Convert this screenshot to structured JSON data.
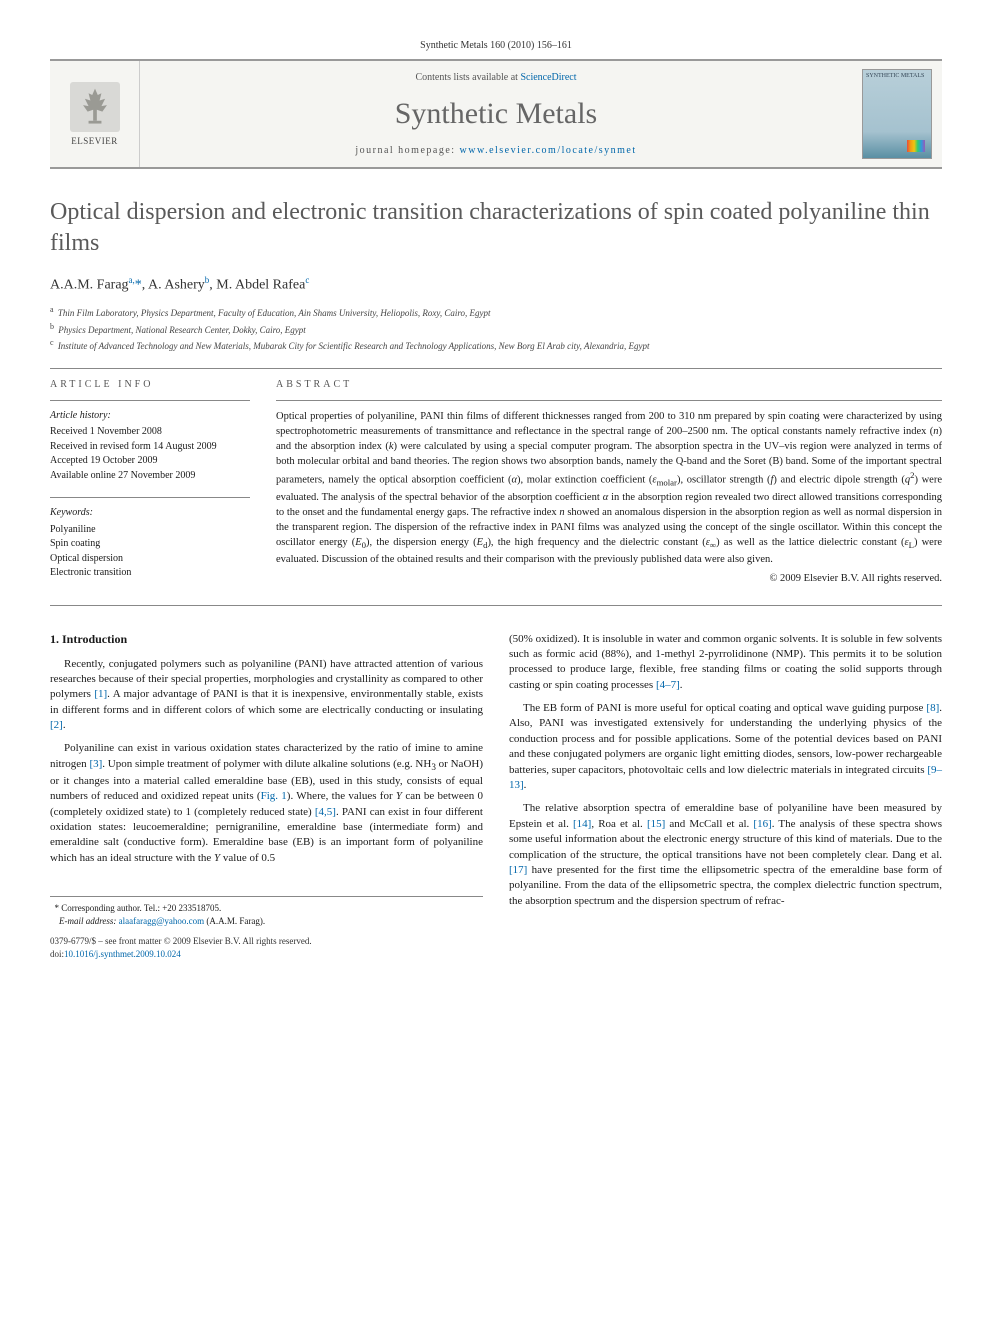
{
  "header": {
    "citation": "Synthetic Metals 160 (2010) 156–161"
  },
  "banner": {
    "publisher": "ELSEVIER",
    "contents_prefix": "Contents lists available at ",
    "contents_link": "ScienceDirect",
    "journal_title": "Synthetic Metals",
    "homepage_prefix": "journal homepage: ",
    "homepage_url": "www.elsevier.com/locate/synmet",
    "cover_label": "SYNTHETIC METALS"
  },
  "article": {
    "title": "Optical dispersion and electronic transition characterizations of spin coated polyaniline thin films",
    "authors_html": "A.A.M. Farag<sup>a,</sup><span class=\"star\">*</span>, A. Ashery<sup>b</sup>, M. Abdel Rafea<sup>c</sup>",
    "affiliations": {
      "a": "Thin Film Laboratory, Physics Department, Faculty of Education, Ain Shams University, Heliopolis, Roxy, Cairo, Egypt",
      "b": "Physics Department, National Research Center, Dokky, Cairo, Egypt",
      "c": "Institute of Advanced Technology and New Materials, Mubarak City for Scientific Research and Technology Applications, New Borg El Arab city, Alexandria, Egypt"
    }
  },
  "info": {
    "section_label": "article info",
    "history_title": "Article history:",
    "history": {
      "received": "Received 1 November 2008",
      "revised": "Received in revised form 14 August 2009",
      "accepted": "Accepted 19 October 2009",
      "online": "Available online 27 November 2009"
    },
    "keywords_title": "Keywords:",
    "keywords": [
      "Polyaniline",
      "Spin coating",
      "Optical dispersion",
      "Electronic transition"
    ]
  },
  "abstract": {
    "section_label": "abstract",
    "text_html": "Optical properties of polyaniline, PANI thin films of different thicknesses ranged from 200 to 310 nm prepared by spin coating were characterized by using spectrophotometric measurements of transmittance and reflectance in the spectral range of 200–2500 nm. The optical constants namely refractive index (<i>n</i>) and the absorption index (<i>k</i>) were calculated by using a special computer program. The absorption spectra in the UV–vis region were analyzed in terms of both molecular orbital and band theories. The region shows two absorption bands, namely the Q-band and the Soret (B) band. Some of the important spectral parameters, namely the optical absorption coefficient (<i>α</i>), molar extinction coefficient (<i>ε</i><sub>molar</sub>), oscillator strength (<i>f</i>) and electric dipole strength (<i>q</i><sup>2</sup>) were evaluated. The analysis of the spectral behavior of the absorption coefficient <i>α</i> in the absorption region revealed two direct allowed transitions corresponding to the onset and the fundamental energy gaps. The refractive index <i>n</i> showed an anomalous dispersion in the absorption region as well as normal dispersion in the transparent region. The dispersion of the refractive index in PANI films was analyzed using the concept of the single oscillator. Within this concept the oscillator energy (<i>E</i><sub>0</sub>), the dispersion energy (<i>E</i><sub>d</sub>), the high frequency and the dielectric constant (<i>ε</i><sub>∞</sub>) as well as the lattice dielectric constant (<i>ε</i><sub>L</sub>) were evaluated. Discussion of the obtained results and their comparison with the previously published data were also given.",
    "copyright": "© 2009 Elsevier B.V. All rights reserved."
  },
  "body": {
    "heading1": "1. Introduction",
    "left_paras": [
      "Recently, conjugated polymers such as polyaniline (PANI) have attracted attention of various researches because of their special properties, morphologies and crystallinity as compared to other polymers <a href=\"#\">[1]</a>. A major advantage of PANI is that it is inexpensive, environmentally stable, exists in different forms and in different colors of which some are electrically conducting or insulating <a href=\"#\">[2]</a>.",
      "Polyaniline can exist in various oxidation states characterized by the ratio of imine to amine nitrogen <a href=\"#\">[3]</a>. Upon simple treatment of polymer with dilute alkaline solutions (e.g. NH<sub>3</sub> or NaOH) or it changes into a material called emeraldine base (EB), used in this study, consists of equal numbers of reduced and oxidized repeat units (<a href=\"#\">Fig. 1</a>). Where, the values for <i>Y</i> can be between 0 (completely oxidized state) to 1 (completely reduced state) <a href=\"#\">[4,5]</a>. PANI can exist in four different oxidation states: leucoemeraldine; pernigraniline, emeraldine base (intermediate form) and emeraldine salt (conductive form). Emeraldine base (EB) is an important form of polyaniline which has an ideal structure with the <i>Y</i> value of 0.5"
    ],
    "right_paras": [
      "(50% oxidized). It is insoluble in water and common organic solvents. It is soluble in few solvents such as formic acid (88%), and 1-methyl 2-pyrrolidinone (NMP). This permits it to be solution processed to produce large, flexible, free standing films or coating the solid supports through casting or spin coating processes <a href=\"#\">[4–7]</a>.",
      "The EB form of PANI is more useful for optical coating and optical wave guiding purpose <a href=\"#\">[8]</a>. Also, PANI was investigated extensively for understanding the underlying physics of the conduction process and for possible applications. Some of the potential devices based on PANI and these conjugated polymers are organic light emitting diodes, sensors, low-power rechargeable batteries, super capacitors, photovoltaic cells and low dielectric materials in integrated circuits <a href=\"#\">[9–13]</a>.",
      "The relative absorption spectra of emeraldine base of polyaniline have been measured by Epstein et al. <a href=\"#\">[14]</a>, Roa et al. <a href=\"#\">[15]</a> and McCall et al. <a href=\"#\">[16]</a>. The analysis of these spectra shows some useful information about the electronic energy structure of this kind of materials. Due to the complication of the structure, the optical transitions have not been completely clear. Dang et al. <a href=\"#\">[17]</a> have presented for the first time the ellipsometric spectra of the emeraldine base form of polyaniline. From the data of the ellipsometric spectra, the complex dielectric function spectrum, the absorption spectrum and the dispersion spectrum of refrac-"
    ]
  },
  "footnotes": {
    "corr": "Corresponding author. Tel.: +20 233518705.",
    "email_label": "E-mail address:",
    "email": "alaafaragg@yahoo.com",
    "email_suffix": "(A.A.M. Farag)."
  },
  "bottom": {
    "issn_line": "0379-6779/$ – see front matter © 2009 Elsevier B.V. All rights reserved.",
    "doi_prefix": "doi:",
    "doi": "10.1016/j.synthmet.2009.10.024"
  },
  "colors": {
    "link": "#0066aa",
    "rule": "#888888",
    "title_gray": "#5a5a5a",
    "banner_bg": "#f5f5f2"
  }
}
